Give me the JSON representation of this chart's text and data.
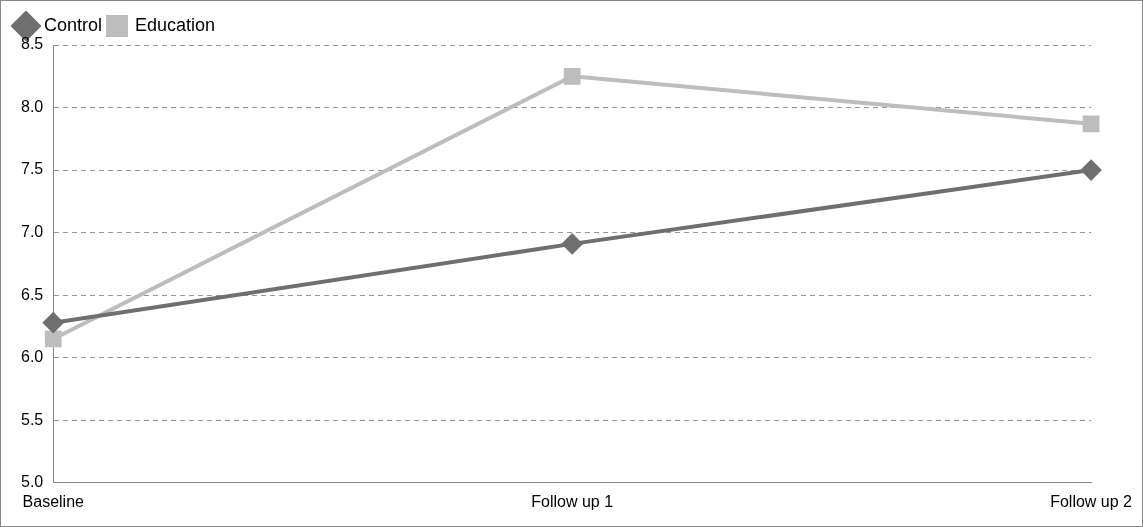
{
  "chart_data": {
    "type": "line",
    "categories": [
      "Baseline",
      "Follow up 1",
      "Follow up 2"
    ],
    "series": [
      {
        "name": "Control",
        "color": "#6f6f6f",
        "marker": "diamond",
        "values": [
          6.28,
          6.91,
          7.5
        ]
      },
      {
        "name": "Education",
        "color": "#bdbdbd",
        "marker": "square",
        "values": [
          6.15,
          8.25,
          7.87
        ]
      }
    ],
    "ylim": [
      5.0,
      8.5
    ],
    "yticks": [
      {
        "value": 5,
        "label": "5.0"
      },
      {
        "value": 5.5,
        "label": "5.5"
      },
      {
        "value": 6,
        "label": "6.0"
      },
      {
        "value": 6.5,
        "label": "6.5"
      },
      {
        "value": 7,
        "label": "7.0"
      },
      {
        "value": 7.5,
        "label": "7.5"
      },
      {
        "value": 8,
        "label": "8.0"
      },
      {
        "value": 8.5,
        "label": "8.5"
      }
    ],
    "grid": "y",
    "legend": "top left",
    "line_style": "solid"
  }
}
